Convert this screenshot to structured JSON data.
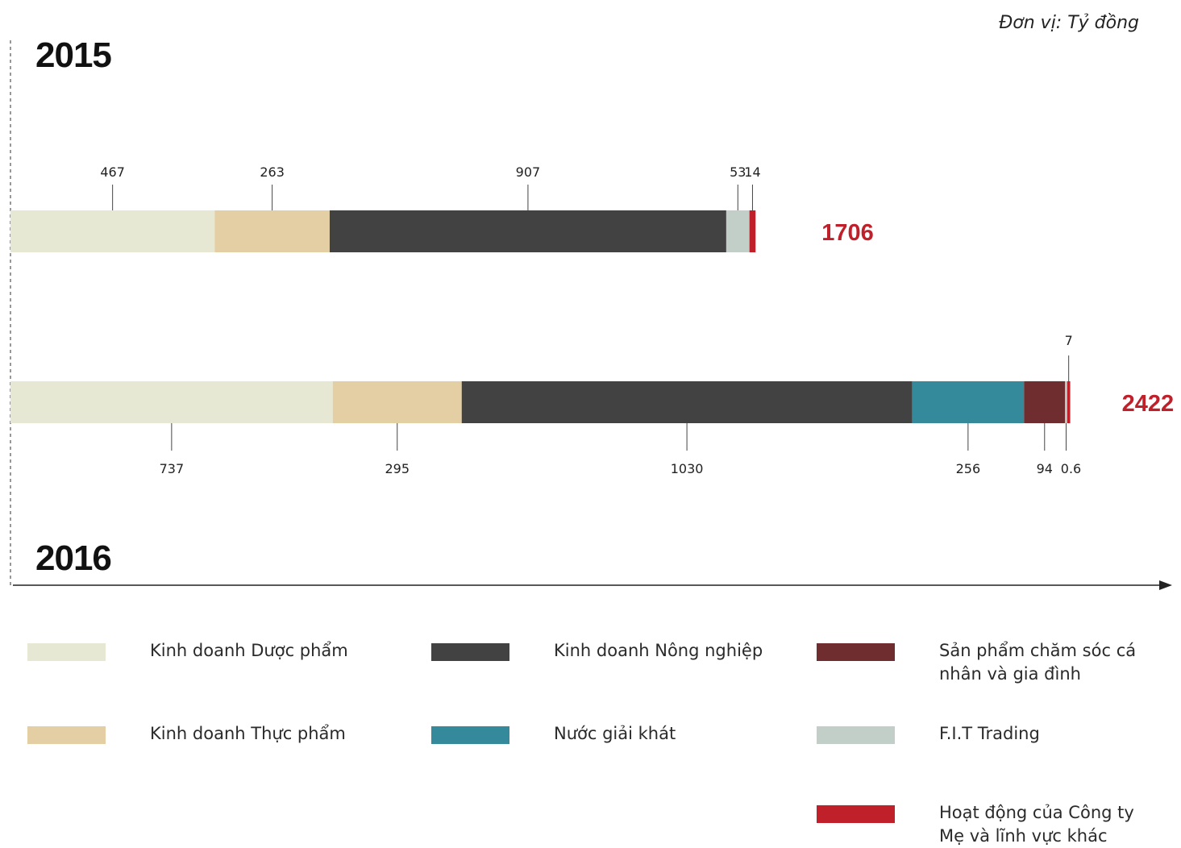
{
  "unit_label": "Đơn vị: Tỷ đồng",
  "chart_data": {
    "type": "bar",
    "orientation": "horizontal",
    "stacked": true,
    "categories": [
      "2015",
      "2016"
    ],
    "totals": [
      "1706",
      "2422"
    ],
    "series": [
      {
        "name": "Kinh doanh Dược phẩm",
        "color": "#e6e8d4",
        "values": [
          467,
          737
        ],
        "labels": [
          "467",
          "737"
        ]
      },
      {
        "name": "Kinh doanh Thực phẩm",
        "color": "#e4cfa5",
        "values": [
          263,
          295
        ],
        "labels": [
          "263",
          "295"
        ]
      },
      {
        "name": "Kinh doanh Nông nghiệp",
        "color": "#424242",
        "values": [
          907,
          1030
        ],
        "labels": [
          "907",
          "1030"
        ]
      },
      {
        "name": "Nước giải khát",
        "color": "#34899a",
        "values": [
          0,
          256
        ],
        "labels": [
          "",
          "256"
        ]
      },
      {
        "name": "Sản phẩm chăm sóc cá nhân và gia đình",
        "color": "#6f2d2f",
        "values": [
          0,
          94
        ],
        "labels": [
          "",
          "94"
        ]
      },
      {
        "name": "F.I.T Trading",
        "color": "#c2cfc9",
        "values": [
          53,
          0.6
        ],
        "labels": [
          "53",
          "0.6"
        ]
      },
      {
        "name": "Hoạt động của Công ty Mẹ và lĩnh vực khác",
        "color": "#c0202a",
        "values": [
          14,
          7
        ],
        "labels": [
          "14",
          "7"
        ]
      }
    ],
    "total_color": "#c0202a",
    "grid": false
  },
  "legend": [
    {
      "label": "Kinh doanh Dược phẩm",
      "color": "#e6e8d4"
    },
    {
      "label": "Kinh doanh Thực phẩm",
      "color": "#e4cfa5"
    },
    {
      "label": "Kinh doanh Nông nghiệp",
      "color": "#424242"
    },
    {
      "label": "Nước giải khát",
      "color": "#34899a"
    },
    {
      "label": "Sản phẩm chăm sóc cá nhân và gia đình",
      "color": "#6f2d2f"
    },
    {
      "label": "F.I.T Trading",
      "color": "#c2cfc9"
    },
    {
      "label": "Hoạt động của Công ty Mẹ và lĩnh vực khác",
      "color": "#c0202a"
    }
  ]
}
